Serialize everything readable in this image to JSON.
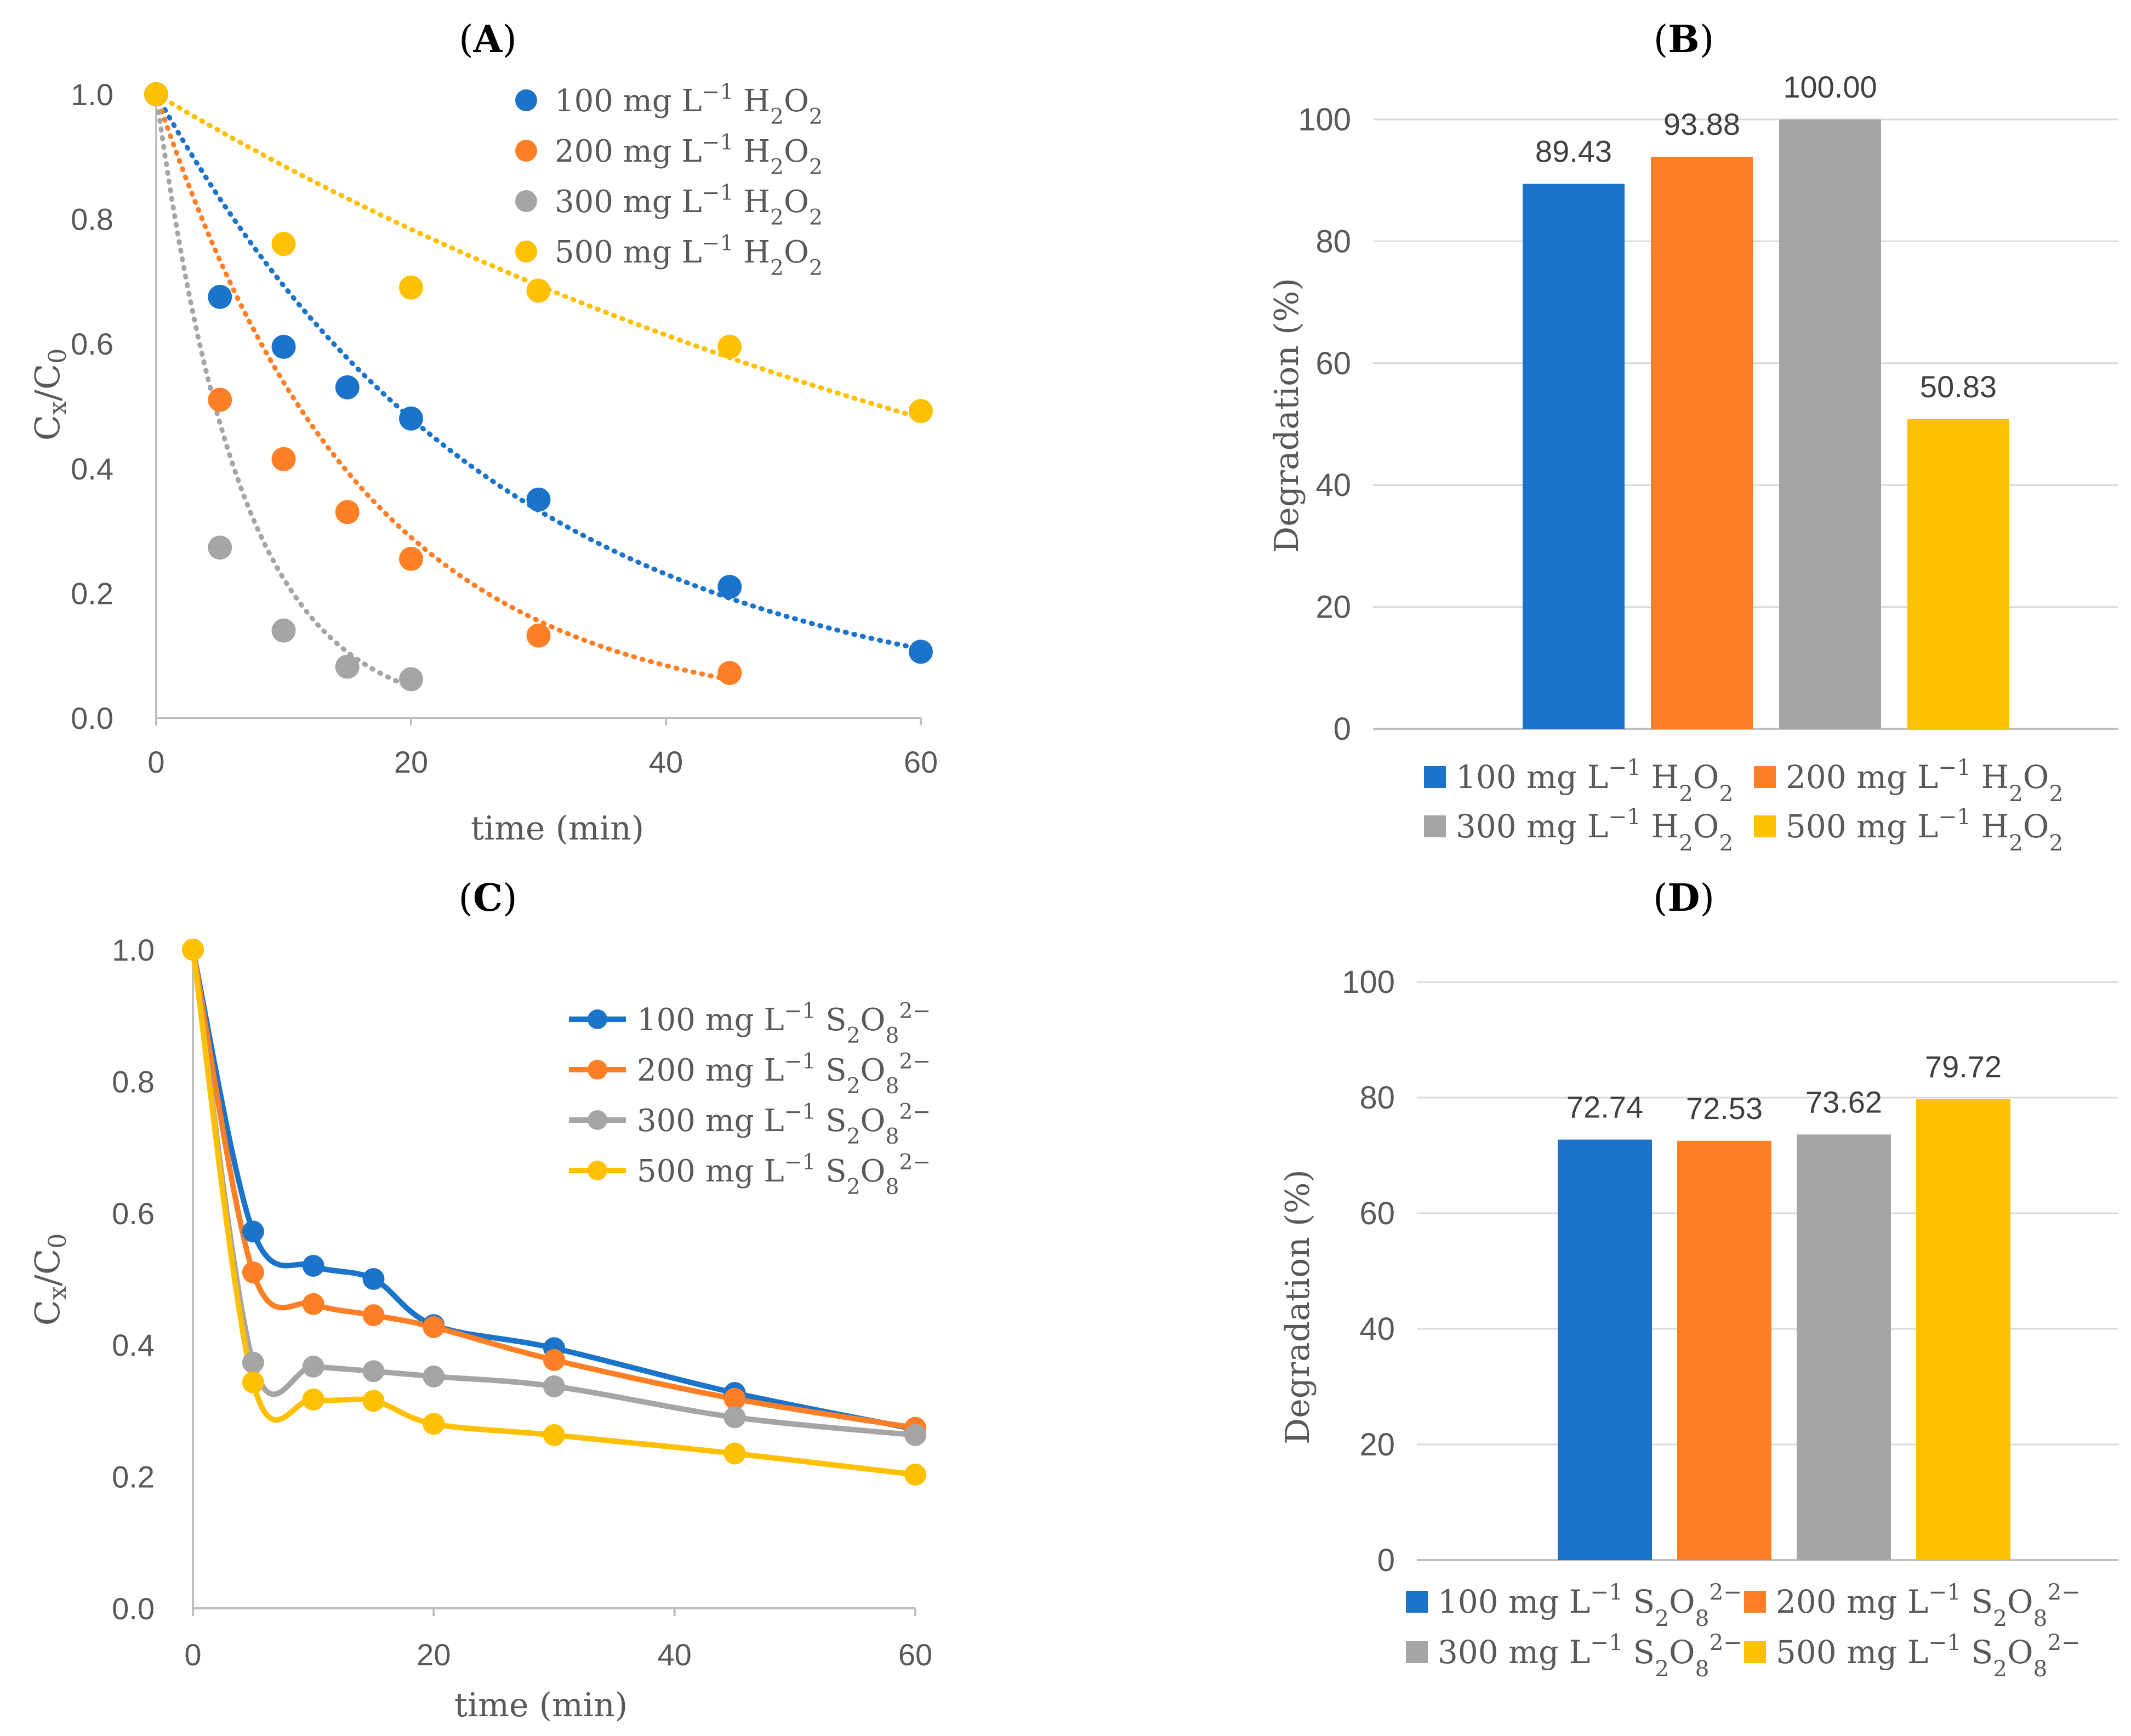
{
  "figure": {
    "panels": {
      "A": {
        "label": "(A)",
        "letter": "A"
      },
      "B": {
        "label": "(B)",
        "letter": "B"
      },
      "C": {
        "label": "(C)",
        "letter": "C"
      },
      "D": {
        "label": "(D)",
        "letter": "D"
      }
    }
  },
  "colors": {
    "blue": "#1B74C9",
    "orange": "#FF7F27",
    "gray": "#A5A5A5",
    "yellow": "#FFC000",
    "axis": "#BFBFBF",
    "grid": "#D9D9D9",
    "tick_text": "#595959",
    "title_text": "#000000"
  },
  "chart_data": [
    {
      "panel": "A",
      "type": "scatter",
      "title": "(A)",
      "xlabel": "time (min)",
      "ylabel": "Cx/C0",
      "xlim": [
        0,
        60
      ],
      "ylim": [
        0,
        1.0
      ],
      "xticks": [
        0,
        20,
        40,
        60
      ],
      "yticks": [
        "0.0",
        "0.2",
        "0.4",
        "0.6",
        "0.8",
        "1.0"
      ],
      "legend_position": "top-right",
      "trendline": "exponential (dotted)",
      "series": [
        {
          "name": "100 mg L⁻¹ H₂O₂",
          "color": "#1B74C9",
          "k": 0.0367,
          "x": [
            0,
            5,
            10,
            15,
            20,
            30,
            45,
            60
          ],
          "y": [
            1.0,
            0.675,
            0.595,
            0.53,
            0.48,
            0.35,
            0.21,
            0.106
          ]
        },
        {
          "name": "200 mg L⁻¹ H₂O₂",
          "color": "#FF7F27",
          "k": 0.062,
          "x": [
            0,
            5,
            10,
            15,
            20,
            30,
            45
          ],
          "y": [
            1.0,
            0.51,
            0.415,
            0.33,
            0.255,
            0.132,
            0.072
          ]
        },
        {
          "name": "300 mg L⁻¹ H₂O₂",
          "color": "#A5A5A5",
          "k": 0.15,
          "x": [
            0,
            5,
            10,
            15,
            20
          ],
          "y": [
            1.0,
            0.273,
            0.14,
            0.082,
            0.062
          ]
        },
        {
          "name": "500 mg L⁻¹ H₂O₂",
          "color": "#FFC000",
          "k": 0.0122,
          "x": [
            0,
            10,
            20,
            30,
            45,
            60
          ],
          "y": [
            1.0,
            0.76,
            0.69,
            0.685,
            0.595,
            0.492
          ]
        }
      ]
    },
    {
      "panel": "B",
      "type": "bar",
      "title": "(B)",
      "xlabel": "",
      "ylabel": "Degradation (%)",
      "ylim": [
        0,
        100
      ],
      "yticks": [
        "0",
        "20",
        "40",
        "60",
        "80",
        "100"
      ],
      "legend_position": "bottom",
      "series": [
        {
          "name": "100 mg L⁻¹ H₂O₂",
          "color": "#1B74C9",
          "value": 89.43,
          "label": "89.43"
        },
        {
          "name": "200 mg L⁻¹ H₂O₂",
          "color": "#FF7F27",
          "value": 93.88,
          "label": "93.88"
        },
        {
          "name": "300 mg L⁻¹ H₂O₂",
          "color": "#A5A5A5",
          "value": 100.0,
          "label": "100.00"
        },
        {
          "name": "500 mg L⁻¹ H₂O₂",
          "color": "#FFC000",
          "value": 50.83,
          "label": "50.83"
        }
      ]
    },
    {
      "panel": "C",
      "type": "line",
      "title": "(C)",
      "xlabel": "time (min)",
      "ylabel": "Cx/C0",
      "xlim": [
        0,
        60
      ],
      "ylim": [
        0,
        1.0
      ],
      "xticks": [
        0,
        20,
        40,
        60
      ],
      "yticks": [
        "0.0",
        "0.2",
        "0.4",
        "0.6",
        "0.8",
        "1.0"
      ],
      "legend_position": "top-right",
      "series": [
        {
          "name": "100 mg L⁻¹ S₂O₈²⁻",
          "color": "#1B74C9",
          "x": [
            0,
            5,
            10,
            15,
            20,
            30,
            45,
            60
          ],
          "y": [
            1.0,
            0.572,
            0.52,
            0.5,
            0.43,
            0.395,
            0.327,
            0.272
          ]
        },
        {
          "name": "200 mg L⁻¹ S₂O₈²⁻",
          "color": "#FF7F27",
          "x": [
            0,
            5,
            10,
            15,
            20,
            30,
            45,
            60
          ],
          "y": [
            1.0,
            0.51,
            0.462,
            0.445,
            0.427,
            0.377,
            0.318,
            0.274
          ]
        },
        {
          "name": "300 mg L⁻¹ S₂O₈²⁻",
          "color": "#A5A5A5",
          "x": [
            0,
            5,
            10,
            15,
            20,
            30,
            45,
            60
          ],
          "y": [
            1.0,
            0.373,
            0.367,
            0.36,
            0.352,
            0.337,
            0.29,
            0.263
          ]
        },
        {
          "name": "500 mg L⁻¹ S₂O₈²⁻",
          "color": "#FFC000",
          "x": [
            0,
            5,
            10,
            15,
            20,
            30,
            45,
            60
          ],
          "y": [
            1.0,
            0.343,
            0.317,
            0.315,
            0.28,
            0.263,
            0.235,
            0.203
          ]
        }
      ]
    },
    {
      "panel": "D",
      "type": "bar",
      "title": "(D)",
      "xlabel": "",
      "ylabel": "Degradation (%)",
      "ylim": [
        0,
        100
      ],
      "yticks": [
        "0",
        "20",
        "40",
        "60",
        "80",
        "100"
      ],
      "legend_position": "bottom",
      "series": [
        {
          "name": "100 mg L⁻¹ S₂O₈²⁻",
          "color": "#1B74C9",
          "value": 72.74,
          "label": "72.74"
        },
        {
          "name": "200 mg L⁻¹ S₂O₈²⁻",
          "color": "#FF7F27",
          "value": 72.53,
          "label": "72.53"
        },
        {
          "name": "300 mg L⁻¹ S₂O₈²⁻",
          "color": "#A5A5A5",
          "value": 73.62,
          "label": "73.62"
        },
        {
          "name": "500 mg L⁻¹ S₂O₈²⁻",
          "color": "#FFC000",
          "value": 79.72,
          "label": "79.72"
        }
      ]
    }
  ]
}
